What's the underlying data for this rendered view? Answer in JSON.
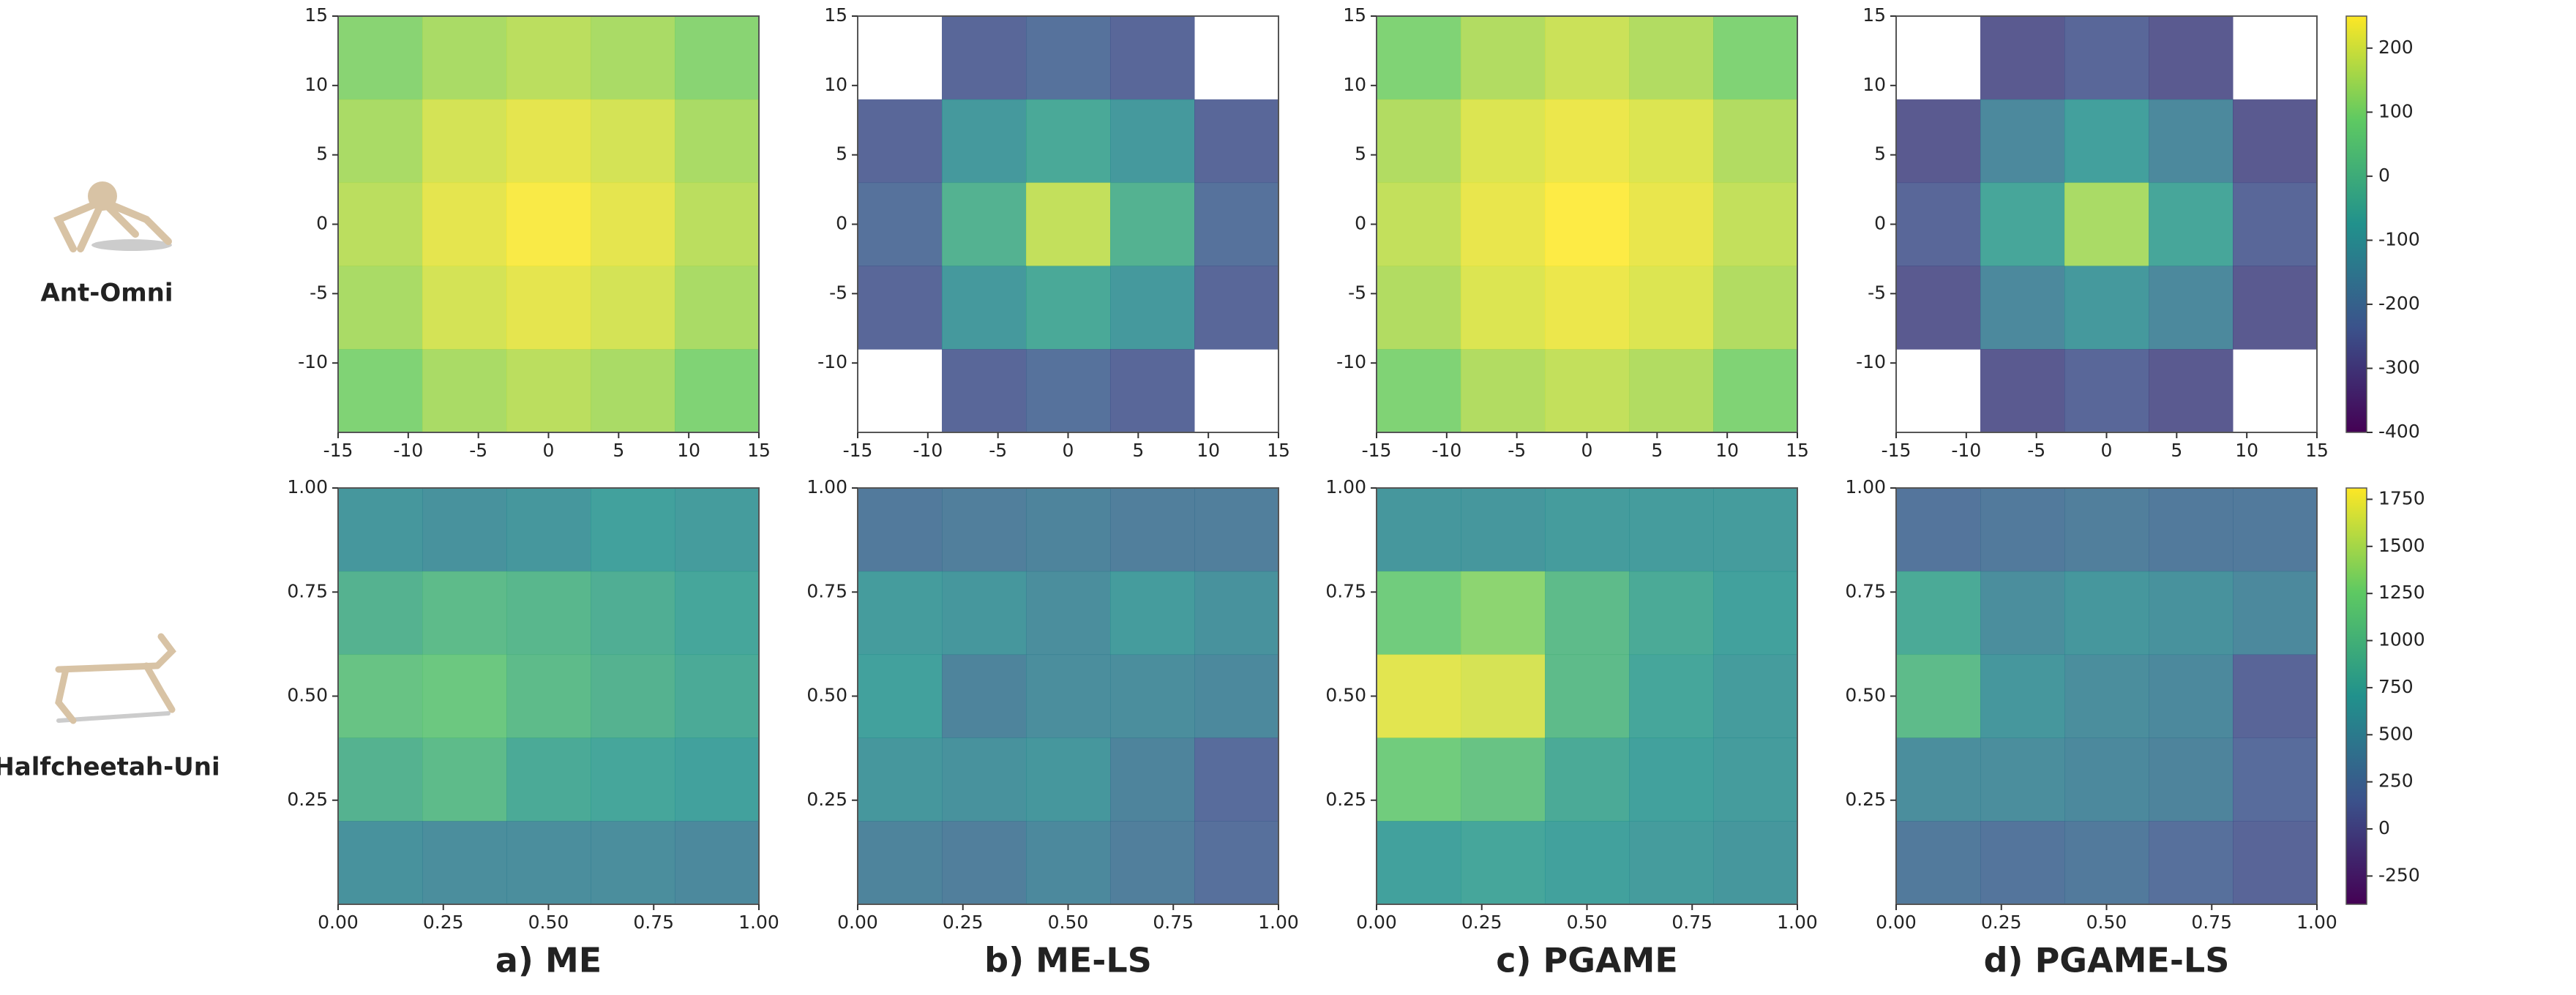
{
  "column_titles": [
    "a) ME",
    "b) ME-LS",
    "c) PGAME",
    "d) PGAME-LS"
  ],
  "row_labels": [
    "Ant-Omni",
    "Halfcheetah-Uni"
  ],
  "colorbars": [
    {
      "colormap": "viridis",
      "clim": [
        -400,
        250
      ],
      "ticks": [
        200,
        100,
        0,
        -100,
        -200,
        -300,
        -400
      ]
    },
    {
      "colormap": "viridis",
      "clim": [
        -400,
        1810
      ],
      "ticks": [
        1750,
        1500,
        1250,
        1000,
        750,
        500,
        250,
        0,
        -250
      ]
    }
  ],
  "chart_data": [
    {
      "type": "heatmap",
      "xlim": [
        -15,
        15
      ],
      "ylim": [
        -15,
        15
      ],
      "xticks": [
        -15,
        -10,
        -5,
        0,
        5,
        10,
        15
      ],
      "yticks": [
        -10,
        -5,
        0,
        5,
        10,
        15
      ],
      "values": [
        [
          110,
          150,
          170,
          150,
          110
        ],
        [
          150,
          200,
          220,
          200,
          150
        ],
        [
          170,
          220,
          245,
          220,
          170
        ],
        [
          150,
          200,
          220,
          200,
          150
        ],
        [
          100,
          150,
          170,
          150,
          100
        ]
      ]
    },
    {
      "type": "heatmap",
      "xlim": [
        -15,
        15
      ],
      "ylim": [
        -15,
        15
      ],
      "xticks": [
        -15,
        -10,
        -5,
        0,
        5,
        10,
        15
      ],
      "yticks": [
        -10,
        -5,
        0,
        5,
        10,
        15
      ],
      "values": [
        [
          null,
          -250,
          -220,
          -250,
          null
        ],
        [
          -250,
          -100,
          -50,
          -100,
          -250
        ],
        [
          -220,
          -20,
          180,
          -20,
          -220
        ],
        [
          -250,
          -100,
          -50,
          -100,
          -250
        ],
        [
          null,
          -250,
          -220,
          -250,
          null
        ]
      ]
    },
    {
      "type": "heatmap",
      "xlim": [
        -15,
        15
      ],
      "ylim": [
        -15,
        15
      ],
      "xticks": [
        -15,
        -10,
        -5,
        0,
        5,
        10,
        15
      ],
      "yticks": [
        -10,
        -5,
        0,
        5,
        10,
        15
      ],
      "values": [
        [
          100,
          160,
          190,
          160,
          100
        ],
        [
          160,
          210,
          230,
          210,
          160
        ],
        [
          180,
          225,
          250,
          225,
          180
        ],
        [
          160,
          210,
          230,
          210,
          160
        ],
        [
          100,
          160,
          180,
          160,
          100
        ]
      ]
    },
    {
      "type": "heatmap",
      "xlim": [
        -15,
        15
      ],
      "ylim": [
        -15,
        15
      ],
      "xticks": [
        -15,
        -10,
        -5,
        0,
        5,
        10,
        15
      ],
      "yticks": [
        -10,
        -5,
        0,
        5,
        10,
        15
      ],
      "values": [
        [
          null,
          -280,
          -250,
          -280,
          null
        ],
        [
          -280,
          -150,
          -80,
          -150,
          -280
        ],
        [
          -250,
          -60,
          150,
          -60,
          -250
        ],
        [
          -280,
          -150,
          -100,
          -150,
          -280
        ],
        [
          null,
          -280,
          -250,
          -280,
          null
        ]
      ]
    },
    {
      "type": "heatmap",
      "xlim": [
        0,
        1
      ],
      "ylim": [
        0,
        1
      ],
      "xticks": [
        {
          "value": 0,
          "label": "0.00"
        },
        0.25,
        {
          "value": 0.5,
          "label": "0.50"
        },
        0.75,
        {
          "value": 1,
          "label": "1.00"
        }
      ],
      "yticks": [
        0.25,
        {
          "value": 0.5,
          "label": "0.50"
        },
        0.75,
        {
          "value": 1,
          "label": "1.00"
        }
      ],
      "values": [
        [
          600,
          550,
          600,
          700,
          650
        ],
        [
          900,
          1000,
          950,
          850,
          750
        ],
        [
          1100,
          1150,
          1000,
          900,
          800
        ],
        [
          900,
          1000,
          800,
          750,
          700
        ],
        [
          550,
          500,
          500,
          500,
          450
        ]
      ]
    },
    {
      "type": "heatmap",
      "xlim": [
        0,
        1
      ],
      "ylim": [
        0,
        1
      ],
      "xticks": [
        {
          "value": 0,
          "label": "0.00"
        },
        0.25,
        {
          "value": 0.5,
          "label": "0.50"
        },
        0.75,
        {
          "value": 1,
          "label": "1.00"
        }
      ],
      "yticks": [
        0.25,
        {
          "value": 0.5,
          "label": "0.50"
        },
        0.75,
        {
          "value": 1,
          "label": "1.00"
        }
      ],
      "values": [
        [
          300,
          350,
          400,
          350,
          350
        ],
        [
          650,
          600,
          500,
          650,
          550
        ],
        [
          700,
          400,
          500,
          500,
          450
        ],
        [
          600,
          550,
          600,
          400,
          150
        ],
        [
          400,
          350,
          450,
          350,
          200
        ]
      ]
    },
    {
      "type": "heatmap",
      "xlim": [
        0,
        1
      ],
      "ylim": [
        0,
        1
      ],
      "xticks": [
        {
          "value": 0,
          "label": "0.00"
        },
        0.25,
        {
          "value": 0.5,
          "label": "0.50"
        },
        0.75,
        {
          "value": 1,
          "label": "1.00"
        }
      ],
      "yticks": [
        0.25,
        {
          "value": 0.5,
          "label": "0.50"
        },
        0.75,
        {
          "value": 1,
          "label": "1.00"
        }
      ],
      "values": [
        [
          600,
          600,
          650,
          650,
          650
        ],
        [
          1200,
          1350,
          1000,
          800,
          700
        ],
        [
          1700,
          1650,
          1000,
          750,
          650
        ],
        [
          1200,
          1100,
          800,
          700,
          650
        ],
        [
          700,
          750,
          700,
          650,
          600
        ]
      ]
    },
    {
      "type": "heatmap",
      "xlim": [
        0,
        1
      ],
      "ylim": [
        0,
        1
      ],
      "xticks": [
        {
          "value": 0,
          "label": "0.00"
        },
        0.25,
        {
          "value": 0.5,
          "label": "0.50"
        },
        0.75,
        {
          "value": 1,
          "label": "1.00"
        }
      ],
      "yticks": [
        0.25,
        {
          "value": 0.5,
          "label": "0.50"
        },
        0.75,
        {
          "value": 1,
          "label": "1.00"
        }
      ],
      "values": [
        [
          250,
          300,
          350,
          300,
          300
        ],
        [
          800,
          500,
          600,
          550,
          450
        ],
        [
          1000,
          600,
          500,
          450,
          100
        ],
        [
          500,
          500,
          450,
          400,
          150
        ],
        [
          300,
          250,
          300,
          200,
          100
        ]
      ]
    }
  ]
}
